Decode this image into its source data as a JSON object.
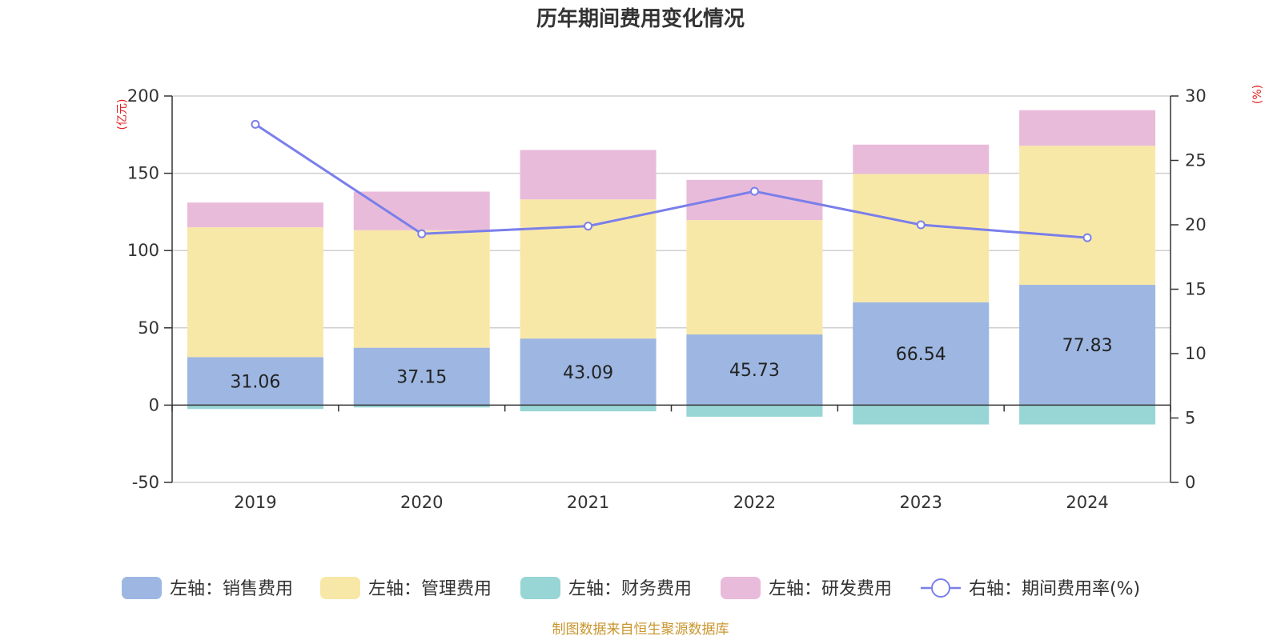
{
  "chart_data": {
    "type": "bar",
    "title": "历年期间费用变化情况",
    "categories": [
      "2019",
      "2020",
      "2021",
      "2022",
      "2023",
      "2024"
    ],
    "left_axis": {
      "unit": "(亿元)",
      "ylim": [
        -50,
        200
      ],
      "ticks": [
        "200",
        "150",
        "100",
        "50",
        "0",
        "-50"
      ]
    },
    "right_axis": {
      "unit": "(%)",
      "ylim": [
        0,
        30
      ],
      "ticks": [
        "30",
        "25",
        "20",
        "15",
        "10",
        "5",
        "0"
      ]
    },
    "grid": true,
    "stacked": true,
    "series": [
      {
        "name": "左轴：销售费用",
        "axis": "left",
        "color": "#9DB7E2",
        "values": [
          31.06,
          37.15,
          43.09,
          45.73,
          66.54,
          77.83
        ],
        "labels": [
          "31.06",
          "37.15",
          "43.09",
          "45.73",
          "66.54",
          "77.83"
        ]
      },
      {
        "name": "左轴：管理费用",
        "axis": "left",
        "color": "#F8E8A8",
        "values": [
          84.0,
          76.0,
          90.0,
          74.0,
          83.0,
          90.0
        ]
      },
      {
        "name": "左轴：财务费用",
        "axis": "left",
        "color": "#98D5D5",
        "values": [
          -2.5,
          -1.5,
          -4.0,
          -7.5,
          -12.5,
          -12.5
        ]
      },
      {
        "name": "左轴：研发费用",
        "axis": "left",
        "color": "#E9BBDA",
        "values": [
          16.0,
          25.0,
          32.0,
          26.0,
          19.0,
          23.0
        ]
      },
      {
        "name": "右轴：期间费用率(%)",
        "axis": "right",
        "type": "line",
        "color": "#7A7FEA",
        "values": [
          27.8,
          19.3,
          19.9,
          22.6,
          20.0,
          19.0
        ]
      }
    ],
    "legend_position": "bottom-center",
    "source": "制图数据来自恒生聚源数据库"
  }
}
